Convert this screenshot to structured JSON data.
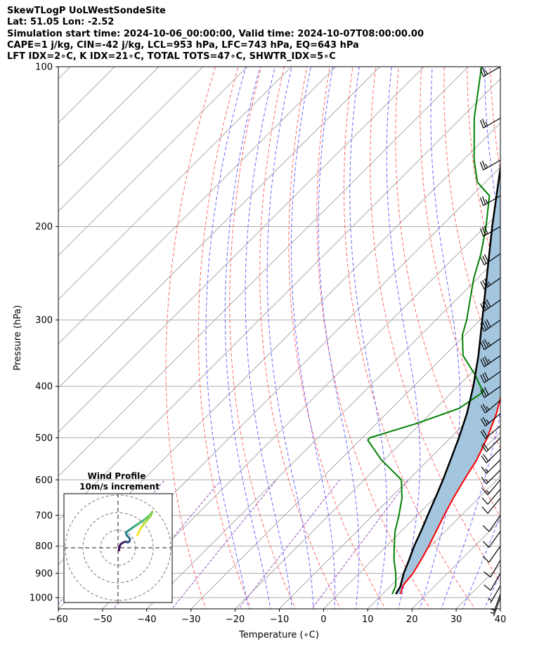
{
  "header": {
    "line1": "SkewTLogP UoLWestSondeSite",
    "line2": "Lat: 51.05   Lon: -2.52",
    "line3": "Simulation start time: 2024-10-06_00:00:00, Valid time: 2024-10-07T08:00:00.00",
    "line4": "CAPE=1 j/kg, CIN=-42 j/kg, LCL=953 hPa, LFC=743 hPa, EQ=643 hPa",
    "line5": "LFT IDX=2∘C, K IDX=21∘C, TOTAL TOTS=47∘C, SHWTR_IDX=5∘C"
  },
  "chart_data": {
    "type": "skew-t log-p",
    "xlabel": "Temperature (∘C)",
    "ylabel": "Pressure (hPa)",
    "xlim": [
      -60,
      40
    ],
    "ylim_hpa": [
      1050,
      100
    ],
    "x_ticks": [
      "−60",
      "−50",
      "−40",
      "−30",
      "−20",
      "−10",
      "0",
      "10",
      "20",
      "30",
      "40"
    ],
    "y_ticks": [
      "100",
      "200",
      "300",
      "400",
      "500",
      "600",
      "700",
      "800",
      "900",
      "1000"
    ],
    "colors": {
      "temperature": "#ff0000",
      "dewpoint": "#008000",
      "parcel": "#000000",
      "cape_fill": "#a3c5de",
      "dry_adiabats": "#ff6a6a",
      "moist_adiabats": "#6a6aff",
      "mixing_ratio": "#9955bb",
      "isotherms": "#aaaaaa"
    },
    "series": [
      {
        "key": "temperature",
        "points": [
          [
            985,
            14.1
          ],
          [
            950,
            12.7
          ],
          [
            900,
            12.2
          ],
          [
            850,
            11.0
          ],
          [
            800,
            9.6
          ],
          [
            750,
            7.9
          ],
          [
            700,
            6.1
          ],
          [
            650,
            4.3
          ],
          [
            600,
            2.6
          ],
          [
            550,
            0.9
          ],
          [
            500,
            -1.7
          ],
          [
            450,
            -5.1
          ],
          [
            400,
            -9.7
          ],
          [
            350,
            -15.9
          ],
          [
            300,
            -23.8
          ],
          [
            250,
            -33.9
          ],
          [
            225,
            -39.2
          ],
          [
            200,
            -45.5
          ],
          [
            175,
            -50.9
          ],
          [
            150,
            -55.3
          ],
          [
            135,
            -57.5
          ],
          [
            125,
            -58.9
          ],
          [
            115,
            -60.2
          ],
          [
            105,
            -61.6
          ],
          [
            100,
            -62.5
          ]
        ]
      },
      {
        "key": "dewpoint",
        "points": [
          [
            985,
            12.2
          ],
          [
            950,
            11.1
          ],
          [
            900,
            8.3
          ],
          [
            850,
            4.9
          ],
          [
            800,
            1.8
          ],
          [
            750,
            -1.4
          ],
          [
            700,
            -4.1
          ],
          [
            650,
            -7.3
          ],
          [
            600,
            -11.6
          ],
          [
            550,
            -20.7
          ],
          [
            505,
            -28.2
          ],
          [
            500,
            -28.3
          ],
          [
            470,
            -20.9
          ],
          [
            440,
            -14.7
          ],
          [
            410,
            -13.0
          ],
          [
            380,
            -18.8
          ],
          [
            350,
            -25.8
          ],
          [
            320,
            -30.6
          ],
          [
            300,
            -33.0
          ],
          [
            275,
            -36.8
          ],
          [
            250,
            -40.9
          ],
          [
            225,
            -44.8
          ],
          [
            200,
            -49.8
          ],
          [
            175,
            -56.0
          ],
          [
            165,
            -61.8
          ],
          [
            150,
            -67.5
          ],
          [
            125,
            -77.0
          ],
          [
            100,
            -87.0
          ]
        ]
      },
      {
        "key": "parcel",
        "points": [
          [
            985,
            13.0
          ],
          [
            953,
            12.3
          ],
          [
            900,
            10.1
          ],
          [
            850,
            8.3
          ],
          [
            800,
            6.3
          ],
          [
            743,
            4.2
          ],
          [
            700,
            2.4
          ],
          [
            643,
            -0.1
          ],
          [
            600,
            -2.2
          ],
          [
            550,
            -5.0
          ],
          [
            500,
            -8.1
          ],
          [
            450,
            -11.8
          ],
          [
            400,
            -16.5
          ],
          [
            350,
            -22.3
          ],
          [
            300,
            -29.5
          ],
          [
            250,
            -38.0
          ],
          [
            200,
            -48.4
          ],
          [
            175,
            -54.4
          ],
          [
            150,
            -61.3
          ],
          [
            125,
            -69.5
          ],
          [
            100,
            -79.5
          ]
        ]
      }
    ],
    "wind_barbs": {
      "pressures": [
        100,
        125,
        150,
        175,
        200,
        225,
        250,
        275,
        300,
        325,
        350,
        375,
        400,
        425,
        450,
        475,
        500,
        525,
        550,
        575,
        600,
        625,
        650,
        700,
        750,
        800,
        850,
        900,
        950,
        985,
        1000
      ],
      "speed_kt": [
        25,
        25,
        25,
        25,
        30,
        30,
        35,
        40,
        40,
        35,
        35,
        30,
        30,
        25,
        25,
        20,
        20,
        20,
        15,
        15,
        15,
        10,
        10,
        10,
        10,
        10,
        10,
        10,
        5,
        5,
        5
      ],
      "from_dir_deg": [
        240,
        240,
        240,
        240,
        240,
        235,
        235,
        235,
        235,
        235,
        235,
        235,
        235,
        230,
        230,
        230,
        225,
        225,
        225,
        225,
        220,
        220,
        220,
        215,
        215,
        215,
        210,
        210,
        210,
        200,
        200
      ]
    },
    "hodograph": {
      "title_line1": "Wind Profile",
      "title_line2": "10m/s increment",
      "rings_ms": [
        10,
        20,
        30
      ],
      "points_uv": [
        [
          0.5,
          -1.5
        ],
        [
          0.8,
          0.5
        ],
        [
          1.5,
          2.0
        ],
        [
          2.8,
          3.0
        ],
        [
          4.5,
          3.5
        ],
        [
          5.5,
          3.0
        ],
        [
          6.5,
          3.5
        ],
        [
          6.8,
          5.0
        ],
        [
          6.0,
          6.0
        ],
        [
          5.0,
          7.0
        ],
        [
          4.5,
          8.5
        ],
        [
          5.5,
          9.5
        ],
        [
          7.0,
          10.5
        ],
        [
          9.0,
          12.0
        ],
        [
          12.0,
          14.0
        ],
        [
          15.0,
          16.0
        ],
        [
          18.0,
          18.5
        ],
        [
          19.5,
          20.5
        ],
        [
          18.5,
          18.0
        ],
        [
          16.0,
          15.0
        ],
        [
          13.5,
          12.0
        ],
        [
          11.5,
          8.5
        ],
        [
          11.0,
          7.0
        ]
      ]
    }
  }
}
